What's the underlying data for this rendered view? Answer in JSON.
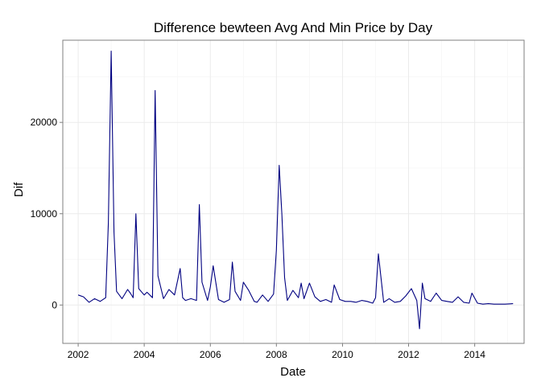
{
  "chart_data": {
    "type": "line",
    "title": "Difference bewteen Avg And Min Price by Day",
    "xlabel": "Date",
    "ylabel": "Dif",
    "x_ticks": [
      "2002",
      "2004",
      "2006",
      "2008",
      "2010",
      "2012",
      "2014"
    ],
    "y_ticks": [
      "0",
      "10000",
      "20000"
    ],
    "xlim": [
      "2001-07-15",
      "2015-07-01"
    ],
    "ylim": [
      -4200,
      29000
    ],
    "grid": true,
    "line_color": "#000080",
    "series": [
      {
        "x": [
          "2002-01-01",
          "2002-03-01",
          "2002-05-01",
          "2002-07-01",
          "2002-09-01",
          "2002-11-01",
          "2002-12-01",
          "2003-01-01",
          "2003-02-01",
          "2003-03-01",
          "2003-05-01",
          "2003-07-01",
          "2003-08-01",
          "2003-09-01",
          "2003-10-01",
          "2003-11-01",
          "2004-01-01",
          "2004-02-01",
          "2004-04-01",
          "2004-05-01",
          "2004-06-01",
          "2004-08-01",
          "2004-10-01",
          "2004-12-01",
          "2005-02-01",
          "2005-03-01",
          "2005-04-01",
          "2005-06-01",
          "2005-08-01",
          "2005-09-01",
          "2005-10-01",
          "2005-12-01",
          "2006-01-01",
          "2006-02-01",
          "2006-04-01",
          "2006-06-01",
          "2006-08-01",
          "2006-09-01",
          "2006-10-01",
          "2006-12-01",
          "2007-01-01",
          "2007-03-01",
          "2007-05-01",
          "2007-06-01",
          "2007-08-01",
          "2007-10-01",
          "2007-12-01",
          "2008-01-01",
          "2008-02-01",
          "2008-03-01",
          "2008-04-01",
          "2008-05-01",
          "2008-07-01",
          "2008-09-01",
          "2008-10-01",
          "2008-11-01",
          "2009-01-01",
          "2009-03-01",
          "2009-05-01",
          "2009-07-01",
          "2009-09-01",
          "2009-10-01",
          "2009-12-01",
          "2010-02-01",
          "2010-04-01",
          "2010-06-01",
          "2010-08-01",
          "2010-10-01",
          "2010-12-01",
          "2011-01-01",
          "2011-02-01",
          "2011-04-01",
          "2011-06-01",
          "2011-08-01",
          "2011-10-01",
          "2011-12-01",
          "2012-02-01",
          "2012-04-01",
          "2012-05-01",
          "2012-06-01",
          "2012-07-01",
          "2012-09-01",
          "2012-11-01",
          "2013-01-01",
          "2013-03-01",
          "2013-05-01",
          "2013-07-01",
          "2013-09-01",
          "2013-11-01",
          "2013-12-01",
          "2014-02-01",
          "2014-04-01",
          "2014-06-01",
          "2014-08-01",
          "2014-10-01",
          "2014-12-01",
          "2015-03-01"
        ],
        "y": [
          1100,
          900,
          300,
          700,
          400,
          800,
          9000,
          27800,
          8000,
          1500,
          700,
          1700,
          1300,
          800,
          10000,
          1800,
          1100,
          1400,
          800,
          23500,
          3200,
          700,
          1700,
          1100,
          4000,
          800,
          500,
          700,
          500,
          11000,
          2500,
          500,
          2000,
          4300,
          600,
          300,
          600,
          4700,
          1500,
          500,
          2500,
          1600,
          400,
          300,
          1100,
          400,
          1200,
          6000,
          15300,
          10000,
          3000,
          500,
          1600,
          800,
          2400,
          700,
          2400,
          900,
          400,
          600,
          300,
          2200,
          600,
          400,
          400,
          300,
          500,
          400,
          200,
          800,
          5600,
          300,
          700,
          300,
          400,
          1000,
          1800,
          500,
          -2600,
          2400,
          700,
          400,
          1300,
          500,
          400,
          300,
          900,
          300,
          200,
          1300,
          200,
          100,
          150,
          100,
          100,
          100,
          150
        ]
      }
    ]
  }
}
